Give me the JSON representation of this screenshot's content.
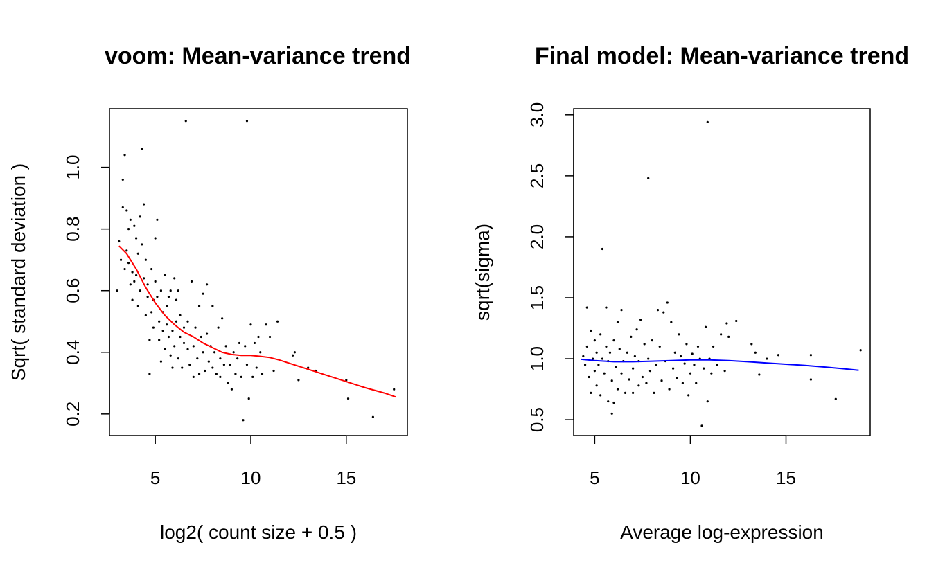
{
  "chart_data": [
    {
      "type": "scatter",
      "title": "voom: Mean-variance trend",
      "xlabel": "log2( count size + 0.5 )",
      "ylabel": "Sqrt( standard deviation )",
      "xlim": [
        2.6,
        18.2
      ],
      "ylim": [
        0.13,
        1.19
      ],
      "xticks": [
        5,
        10,
        15
      ],
      "yticks": [
        0.2,
        0.4,
        0.6,
        0.8,
        1.0
      ],
      "ytick_labels": [
        "0.2",
        "0.4",
        "0.6",
        "0.8",
        "1.0"
      ],
      "point_color": "#000000",
      "trend_color": "#ff0000",
      "points": [
        [
          3.0,
          0.6
        ],
        [
          3.1,
          0.76
        ],
        [
          3.2,
          0.7
        ],
        [
          3.3,
          0.96
        ],
        [
          3.3,
          0.87
        ],
        [
          3.4,
          1.04
        ],
        [
          3.4,
          0.67
        ],
        [
          3.5,
          0.86
        ],
        [
          3.5,
          0.73
        ],
        [
          3.6,
          0.8
        ],
        [
          3.6,
          0.69
        ],
        [
          3.7,
          0.83
        ],
        [
          3.7,
          0.62
        ],
        [
          3.8,
          0.66
        ],
        [
          3.8,
          0.57
        ],
        [
          3.9,
          0.81
        ],
        [
          3.9,
          0.63
        ],
        [
          4.0,
          0.77
        ],
        [
          4.0,
          0.65
        ],
        [
          4.1,
          0.55
        ],
        [
          4.1,
          0.72
        ],
        [
          4.2,
          0.6
        ],
        [
          4.2,
          0.84
        ],
        [
          4.3,
          1.06
        ],
        [
          4.3,
          0.75
        ],
        [
          4.4,
          0.88
        ],
        [
          4.4,
          0.64
        ],
        [
          4.5,
          0.7
        ],
        [
          4.5,
          0.52
        ],
        [
          4.6,
          0.58
        ],
        [
          4.6,
          0.62
        ],
        [
          4.7,
          0.44
        ],
        [
          4.7,
          0.33
        ],
        [
          4.8,
          0.67
        ],
        [
          4.8,
          0.53
        ],
        [
          4.9,
          0.57
        ],
        [
          4.9,
          0.48
        ],
        [
          5.0,
          0.63
        ],
        [
          5.0,
          0.77
        ],
        [
          5.1,
          0.83
        ],
        [
          5.1,
          0.58
        ],
        [
          5.2,
          0.5
        ],
        [
          5.2,
          0.44
        ],
        [
          5.3,
          0.6
        ],
        [
          5.3,
          0.37
        ],
        [
          5.4,
          0.53
        ],
        [
          5.4,
          0.47
        ],
        [
          5.5,
          0.65
        ],
        [
          5.5,
          0.41
        ],
        [
          5.6,
          0.55
        ],
        [
          5.6,
          0.49
        ],
        [
          5.7,
          0.58
        ],
        [
          5.7,
          0.45
        ],
        [
          5.8,
          0.39
        ],
        [
          5.8,
          0.6
        ],
        [
          5.9,
          0.47
        ],
        [
          5.9,
          0.35
        ],
        [
          6.0,
          0.64
        ],
        [
          6.0,
          0.42
        ],
        [
          6.1,
          0.57
        ],
        [
          6.1,
          0.5
        ],
        [
          6.2,
          0.38
        ],
        [
          6.2,
          0.6
        ],
        [
          6.3,
          0.45
        ],
        [
          6.3,
          0.52
        ],
        [
          6.4,
          0.35
        ],
        [
          6.5,
          0.48
        ],
        [
          6.5,
          0.43
        ],
        [
          6.6,
          1.15
        ],
        [
          6.7,
          0.5
        ],
        [
          6.7,
          0.41
        ],
        [
          6.8,
          0.36
        ],
        [
          6.9,
          0.63
        ],
        [
          7.0,
          0.42
        ],
        [
          7.0,
          0.32
        ],
        [
          7.1,
          0.48
        ],
        [
          7.2,
          0.38
        ],
        [
          7.3,
          0.55
        ],
        [
          7.3,
          0.33
        ],
        [
          7.4,
          0.45
        ],
        [
          7.5,
          0.59
        ],
        [
          7.5,
          0.4
        ],
        [
          7.6,
          0.34
        ],
        [
          7.7,
          0.62
        ],
        [
          7.7,
          0.46
        ],
        [
          7.8,
          0.37
        ],
        [
          7.9,
          0.42
        ],
        [
          8.0,
          0.55
        ],
        [
          8.0,
          0.35
        ],
        [
          8.1,
          0.4
        ],
        [
          8.2,
          0.33
        ],
        [
          8.3,
          0.48
        ],
        [
          8.4,
          0.38
        ],
        [
          8.4,
          0.32
        ],
        [
          8.5,
          0.51
        ],
        [
          8.6,
          0.36
        ],
        [
          8.7,
          0.42
        ],
        [
          8.8,
          0.3
        ],
        [
          8.9,
          0.36
        ],
        [
          9.0,
          0.28
        ],
        [
          9.1,
          0.4
        ],
        [
          9.2,
          0.33
        ],
        [
          9.3,
          0.38
        ],
        [
          9.4,
          0.43
        ],
        [
          9.5,
          0.32
        ],
        [
          9.6,
          0.18
        ],
        [
          9.7,
          0.42
        ],
        [
          9.8,
          1.15
        ],
        [
          9.8,
          0.36
        ],
        [
          9.9,
          0.25
        ],
        [
          10.0,
          0.49
        ],
        [
          10.1,
          0.32
        ],
        [
          10.2,
          0.43
        ],
        [
          10.3,
          0.35
        ],
        [
          10.4,
          0.45
        ],
        [
          10.5,
          0.4
        ],
        [
          10.6,
          0.33
        ],
        [
          10.8,
          0.49
        ],
        [
          11.0,
          0.45
        ],
        [
          11.2,
          0.34
        ],
        [
          11.4,
          0.5
        ],
        [
          12.2,
          0.39
        ],
        [
          12.3,
          0.4
        ],
        [
          12.5,
          0.31
        ],
        [
          13.0,
          0.35
        ],
        [
          13.4,
          0.34
        ],
        [
          15.0,
          0.31
        ],
        [
          15.1,
          0.25
        ],
        [
          16.4,
          0.19
        ],
        [
          17.5,
          0.28
        ]
      ],
      "trend": [
        [
          3.1,
          0.745
        ],
        [
          3.5,
          0.72
        ],
        [
          4.0,
          0.67
        ],
        [
          4.5,
          0.61
        ],
        [
          5.0,
          0.56
        ],
        [
          5.5,
          0.52
        ],
        [
          6.0,
          0.49
        ],
        [
          6.5,
          0.465
        ],
        [
          7.0,
          0.45
        ],
        [
          7.5,
          0.43
        ],
        [
          8.0,
          0.415
        ],
        [
          8.5,
          0.4
        ],
        [
          9.0,
          0.393
        ],
        [
          9.5,
          0.39
        ],
        [
          10.0,
          0.39
        ],
        [
          10.5,
          0.387
        ],
        [
          11.0,
          0.383
        ],
        [
          11.5,
          0.375
        ],
        [
          12.0,
          0.365
        ],
        [
          13.0,
          0.345
        ],
        [
          14.0,
          0.325
        ],
        [
          15.0,
          0.305
        ],
        [
          16.0,
          0.285
        ],
        [
          17.0,
          0.268
        ],
        [
          17.6,
          0.255
        ]
      ]
    },
    {
      "type": "scatter",
      "title": "Final model: Mean-variance trend",
      "xlabel": "Average log-expression",
      "ylabel": "sqrt(sigma)",
      "xlim": [
        3.9,
        19.4
      ],
      "ylim": [
        0.37,
        3.05
      ],
      "xticks": [
        5,
        10,
        15
      ],
      "yticks": [
        0.5,
        1.0,
        1.5,
        2.0,
        2.5,
        3.0
      ],
      "ytick_labels": [
        "0.5",
        "1.0",
        "1.5",
        "2.0",
        "2.5",
        "3.0"
      ],
      "point_color": "#000000",
      "trend_color": "#0000ff",
      "points": [
        [
          4.4,
          1.02
        ],
        [
          4.5,
          0.95
        ],
        [
          4.6,
          1.42
        ],
        [
          4.6,
          1.1
        ],
        [
          4.7,
          0.85
        ],
        [
          4.8,
          1.23
        ],
        [
          4.8,
          0.72
        ],
        [
          4.9,
          1.0
        ],
        [
          5.0,
          0.9
        ],
        [
          5.0,
          1.15
        ],
        [
          5.1,
          0.78
        ],
        [
          5.1,
          1.05
        ],
        [
          5.2,
          0.95
        ],
        [
          5.3,
          1.2
        ],
        [
          5.3,
          0.7
        ],
        [
          5.4,
          1.9
        ],
        [
          5.4,
          1.0
        ],
        [
          5.5,
          0.88
        ],
        [
          5.6,
          1.1
        ],
        [
          5.6,
          1.42
        ],
        [
          5.7,
          0.65
        ],
        [
          5.7,
          0.98
        ],
        [
          5.8,
          1.05
        ],
        [
          5.9,
          0.55
        ],
        [
          5.9,
          0.82
        ],
        [
          6.0,
          1.15
        ],
        [
          6.0,
          0.64
        ],
        [
          6.1,
          0.93
        ],
        [
          6.2,
          1.3
        ],
        [
          6.2,
          0.75
        ],
        [
          6.3,
          1.08
        ],
        [
          6.4,
          1.4
        ],
        [
          6.4,
          0.88
        ],
        [
          6.5,
          0.98
        ],
        [
          6.6,
          0.72
        ],
        [
          6.7,
          1.05
        ],
        [
          6.8,
          0.83
        ],
        [
          6.9,
          1.18
        ],
        [
          7.0,
          0.92
        ],
        [
          7.0,
          0.72
        ],
        [
          7.1,
          1.02
        ],
        [
          7.2,
          1.24
        ],
        [
          7.3,
          0.78
        ],
        [
          7.3,
          0.98
        ],
        [
          7.4,
          1.32
        ],
        [
          7.5,
          0.85
        ],
        [
          7.6,
          1.12
        ],
        [
          7.7,
          0.8
        ],
        [
          7.8,
          2.48
        ],
        [
          7.8,
          1.0
        ],
        [
          7.9,
          0.9
        ],
        [
          8.0,
          1.15
        ],
        [
          8.1,
          0.72
        ],
        [
          8.2,
          0.95
        ],
        [
          8.3,
          1.4
        ],
        [
          8.4,
          1.1
        ],
        [
          8.5,
          0.82
        ],
        [
          8.6,
          1.38
        ],
        [
          8.7,
          0.98
        ],
        [
          8.8,
          1.46
        ],
        [
          8.9,
          0.75
        ],
        [
          9.0,
          1.3
        ],
        [
          9.1,
          0.92
        ],
        [
          9.2,
          1.05
        ],
        [
          9.3,
          0.84
        ],
        [
          9.4,
          1.2
        ],
        [
          9.5,
          1.02
        ],
        [
          9.6,
          0.8
        ],
        [
          9.7,
          0.96
        ],
        [
          9.8,
          1.12
        ],
        [
          9.9,
          0.7
        ],
        [
          10.0,
          0.88
        ],
        [
          10.1,
          1.04
        ],
        [
          10.2,
          0.95
        ],
        [
          10.3,
          0.8
        ],
        [
          10.4,
          1.1
        ],
        [
          10.5,
          1.0
        ],
        [
          10.6,
          0.45
        ],
        [
          10.7,
          0.92
        ],
        [
          10.8,
          1.26
        ],
        [
          10.9,
          2.94
        ],
        [
          10.9,
          0.65
        ],
        [
          11.0,
          1.0
        ],
        [
          11.1,
          0.88
        ],
        [
          11.2,
          1.1
        ],
        [
          11.4,
          0.95
        ],
        [
          11.6,
          1.2
        ],
        [
          11.8,
          0.9
        ],
        [
          11.9,
          1.29
        ],
        [
          12.0,
          1.18
        ],
        [
          12.4,
          1.31
        ],
        [
          13.2,
          1.12
        ],
        [
          13.4,
          1.05
        ],
        [
          13.6,
          0.87
        ],
        [
          14.0,
          1.0
        ],
        [
          14.6,
          1.03
        ],
        [
          16.3,
          1.03
        ],
        [
          16.3,
          0.83
        ],
        [
          17.6,
          0.67
        ],
        [
          18.9,
          1.07
        ]
      ],
      "trend": [
        [
          4.3,
          0.995
        ],
        [
          5.0,
          0.985
        ],
        [
          6.0,
          0.975
        ],
        [
          7.0,
          0.975
        ],
        [
          8.0,
          0.98
        ],
        [
          9.0,
          0.985
        ],
        [
          10.0,
          0.99
        ],
        [
          11.0,
          0.99
        ],
        [
          12.0,
          0.985
        ],
        [
          13.0,
          0.975
        ],
        [
          14.0,
          0.965
        ],
        [
          15.0,
          0.955
        ],
        [
          16.0,
          0.945
        ],
        [
          17.0,
          0.932
        ],
        [
          18.0,
          0.918
        ],
        [
          18.8,
          0.905
        ]
      ]
    }
  ]
}
